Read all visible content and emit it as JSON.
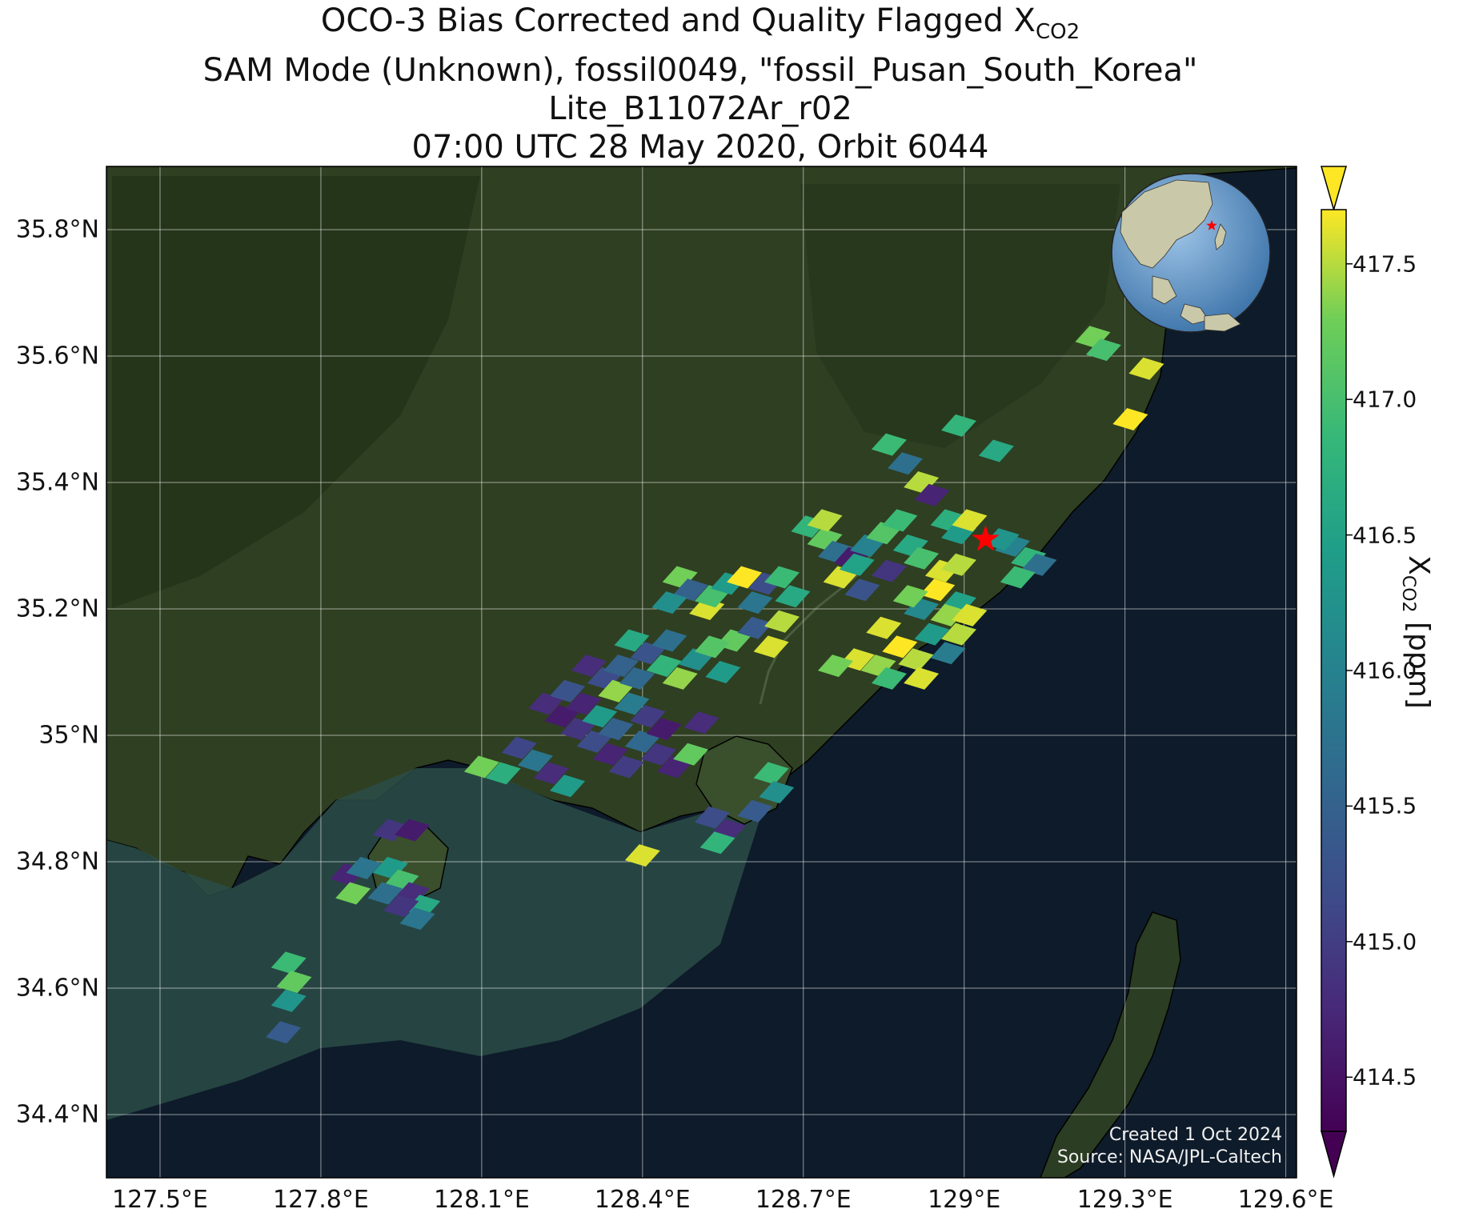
{
  "title": {
    "line1_prefix": "OCO-3 Bias Corrected and Quality Flagged X",
    "line1_sub": "CO2",
    "line2": "SAM Mode (Unknown), fossil0049, \"fossil_Pusan_South_Korea\"",
    "line3": "Lite_B11072Ar_r02",
    "line4": "07:00 UTC 28 May 2020, Orbit 6044"
  },
  "map": {
    "lon_range": [
      127.4,
      129.62
    ],
    "lat_range": [
      34.3,
      35.9
    ],
    "x_ticks": [
      "127.5°E",
      "127.8°E",
      "128.1°E",
      "128.4°E",
      "128.7°E",
      "129°E",
      "129.3°E",
      "129.6°E"
    ],
    "x_tick_values": [
      127.5,
      127.8,
      128.1,
      128.4,
      128.7,
      129.0,
      129.3,
      129.6
    ],
    "y_ticks": [
      "35.8°N",
      "35.6°N",
      "35.4°N",
      "35.2°N",
      "35°N",
      "34.8°N",
      "34.6°N",
      "34.4°N"
    ],
    "y_tick_values": [
      35.8,
      35.6,
      35.4,
      35.2,
      35.0,
      34.8,
      34.6,
      34.4
    ],
    "site_marker": {
      "lon": 129.04,
      "lat": 35.31,
      "color": "#ff0000"
    },
    "gridlines": true
  },
  "colorbar": {
    "label_prefix": "X",
    "label_sub": "CO2",
    "label_suffix": " [ppm]",
    "range": [
      414.3,
      417.7
    ],
    "ticks": [
      "414.5",
      "415.0",
      "415.5",
      "416.0",
      "416.5",
      "417.0",
      "417.5"
    ],
    "tick_values": [
      414.5,
      415.0,
      415.5,
      416.0,
      416.5,
      417.0,
      417.5
    ],
    "colormap": "viridis",
    "extend": "both"
  },
  "credit": {
    "line1": "Created 1 Oct 2024",
    "line2": "Source: NASA/JPL-Caltech"
  },
  "chart_data": {
    "type": "scatter",
    "description_units": "longitude (deg E), latitude (deg N), XCO2 (ppm)",
    "soundings": [
      [
        128.86,
        35.46,
        416.9
      ],
      [
        128.89,
        35.43,
        415.7
      ],
      [
        128.92,
        35.4,
        417.5
      ],
      [
        128.94,
        35.38,
        414.7
      ],
      [
        128.99,
        35.49,
        416.8
      ],
      [
        129.06,
        35.45,
        416.6
      ],
      [
        128.97,
        35.34,
        416.7
      ],
      [
        128.71,
        35.33,
        416.8
      ],
      [
        128.74,
        35.31,
        417.2
      ],
      [
        128.76,
        35.29,
        415.7
      ],
      [
        128.79,
        35.28,
        414.6
      ],
      [
        128.77,
        35.25,
        417.6
      ],
      [
        128.8,
        35.27,
        416.5
      ],
      [
        128.82,
        35.3,
        416.0
      ],
      [
        128.85,
        35.32,
        417.1
      ],
      [
        128.88,
        35.34,
        416.9
      ],
      [
        128.74,
        35.34,
        417.5
      ],
      [
        128.81,
        35.23,
        415.3
      ],
      [
        128.86,
        35.26,
        414.9
      ],
      [
        128.9,
        35.3,
        416.6
      ],
      [
        128.92,
        35.28,
        417.0
      ],
      [
        128.99,
        35.32,
        416.4
      ],
      [
        129.01,
        35.34,
        417.6
      ],
      [
        129.09,
        35.3,
        416.0
      ],
      [
        129.12,
        35.28,
        416.8
      ],
      [
        129.14,
        35.27,
        415.7
      ],
      [
        129.1,
        35.25,
        416.9
      ],
      [
        129.07,
        35.31,
        416.3
      ],
      [
        128.95,
        35.23,
        417.7
      ],
      [
        128.99,
        35.21,
        416.5
      ],
      [
        128.92,
        35.2,
        416.1
      ],
      [
        128.97,
        35.19,
        417.4
      ],
      [
        128.9,
        35.22,
        417.3
      ],
      [
        128.96,
        35.26,
        417.6
      ],
      [
        128.99,
        35.27,
        417.5
      ],
      [
        128.85,
        35.17,
        417.6
      ],
      [
        128.88,
        35.14,
        417.7
      ],
      [
        128.91,
        35.12,
        417.5
      ],
      [
        128.84,
        35.11,
        417.4
      ],
      [
        128.8,
        35.12,
        417.6
      ],
      [
        128.76,
        35.11,
        417.3
      ],
      [
        128.86,
        35.09,
        416.9
      ],
      [
        128.92,
        35.09,
        417.6
      ],
      [
        128.94,
        35.16,
        416.4
      ],
      [
        128.99,
        35.16,
        417.5
      ],
      [
        129.01,
        35.19,
        417.6
      ],
      [
        128.97,
        35.13,
        415.9
      ],
      [
        128.47,
        35.25,
        417.3
      ],
      [
        128.49,
        35.23,
        415.5
      ],
      [
        128.52,
        35.2,
        417.6
      ],
      [
        128.45,
        35.21,
        416.2
      ],
      [
        128.53,
        35.22,
        417.0
      ],
      [
        128.56,
        35.24,
        416.4
      ],
      [
        128.59,
        35.25,
        417.7
      ],
      [
        128.61,
        35.21,
        415.8
      ],
      [
        128.63,
        35.24,
        415.2
      ],
      [
        128.66,
        35.25,
        416.9
      ],
      [
        128.68,
        35.22,
        416.6
      ],
      [
        128.57,
        35.15,
        417.2
      ],
      [
        128.61,
        35.17,
        415.4
      ],
      [
        128.64,
        35.14,
        417.6
      ],
      [
        128.66,
        35.18,
        417.5
      ],
      [
        128.38,
        35.15,
        416.6
      ],
      [
        128.41,
        35.13,
        415.3
      ],
      [
        128.44,
        35.11,
        416.8
      ],
      [
        128.47,
        35.09,
        417.4
      ],
      [
        128.5,
        35.12,
        416.2
      ],
      [
        128.53,
        35.14,
        417.1
      ],
      [
        128.55,
        35.1,
        416.4
      ],
      [
        128.45,
        35.15,
        415.7
      ],
      [
        128.3,
        35.11,
        414.8
      ],
      [
        128.33,
        35.09,
        415.2
      ],
      [
        128.35,
        35.07,
        417.4
      ],
      [
        128.38,
        35.05,
        415.9
      ],
      [
        128.41,
        35.03,
        415.0
      ],
      [
        128.36,
        35.11,
        415.5
      ],
      [
        128.39,
        35.09,
        415.6
      ],
      [
        128.22,
        35.05,
        414.8
      ],
      [
        128.25,
        35.03,
        414.6
      ],
      [
        128.28,
        35.01,
        414.9
      ],
      [
        128.31,
        34.99,
        415.2
      ],
      [
        128.34,
        34.97,
        414.7
      ],
      [
        128.37,
        34.95,
        415.0
      ],
      [
        128.26,
        35.07,
        415.3
      ],
      [
        128.29,
        35.05,
        414.7
      ],
      [
        128.32,
        35.03,
        416.4
      ],
      [
        128.35,
        35.01,
        415.5
      ],
      [
        128.17,
        34.98,
        415.1
      ],
      [
        128.2,
        34.96,
        415.8
      ],
      [
        128.23,
        34.94,
        414.8
      ],
      [
        128.26,
        34.92,
        416.4
      ],
      [
        128.14,
        34.94,
        416.7
      ],
      [
        128.1,
        34.95,
        417.3
      ],
      [
        128.4,
        34.99,
        415.6
      ],
      [
        128.43,
        34.97,
        414.9
      ],
      [
        128.46,
        34.95,
        414.7
      ],
      [
        128.49,
        34.97,
        417.2
      ],
      [
        128.44,
        35.01,
        414.6
      ],
      [
        128.51,
        35.02,
        414.8
      ],
      [
        128.64,
        34.94,
        416.9
      ],
      [
        128.65,
        34.91,
        416.2
      ],
      [
        128.53,
        34.87,
        415.2
      ],
      [
        128.56,
        34.85,
        414.8
      ],
      [
        128.54,
        34.83,
        416.8
      ],
      [
        128.61,
        34.88,
        415.4
      ],
      [
        128.4,
        34.81,
        417.6
      ],
      [
        127.93,
        34.79,
        416.4
      ],
      [
        127.95,
        34.77,
        417.0
      ],
      [
        127.97,
        34.75,
        414.8
      ],
      [
        127.99,
        34.73,
        416.6
      ],
      [
        127.92,
        34.75,
        415.7
      ],
      [
        127.95,
        34.73,
        414.9
      ],
      [
        127.98,
        34.71,
        415.8
      ],
      [
        127.93,
        34.85,
        414.9
      ],
      [
        127.97,
        34.85,
        414.6
      ],
      [
        127.85,
        34.78,
        414.7
      ],
      [
        127.86,
        34.75,
        417.3
      ],
      [
        127.88,
        34.79,
        415.8
      ],
      [
        127.74,
        34.64,
        416.9
      ],
      [
        127.75,
        34.61,
        417.2
      ],
      [
        127.74,
        34.58,
        416.3
      ],
      [
        127.73,
        34.53,
        415.4
      ],
      [
        129.24,
        35.63,
        417.3
      ],
      [
        129.26,
        35.61,
        417.0
      ],
      [
        129.34,
        35.58,
        417.6
      ],
      [
        129.31,
        35.5,
        417.7
      ]
    ]
  }
}
